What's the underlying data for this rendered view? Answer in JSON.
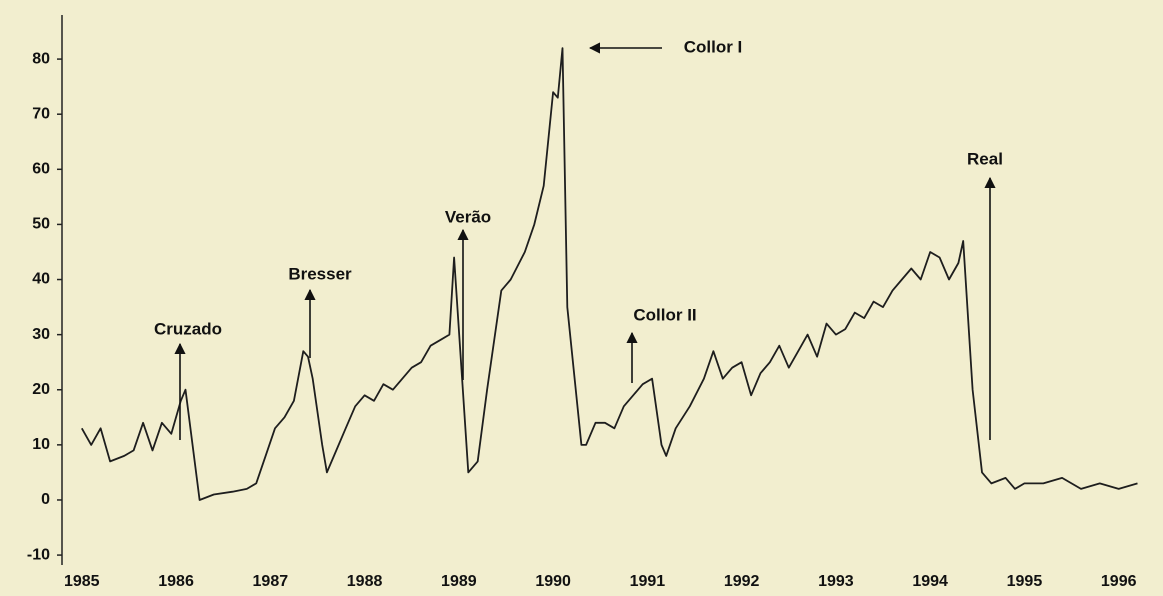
{
  "chart_data": {
    "type": "line",
    "x": [
      1985.0,
      1985.1,
      1985.2,
      1985.3,
      1985.45,
      1985.55,
      1985.65,
      1985.75,
      1985.85,
      1985.95,
      1986.05,
      1986.1,
      1986.25,
      1986.4,
      1986.6,
      1986.75,
      1986.85,
      1986.95,
      1987.05,
      1987.15,
      1987.25,
      1987.35,
      1987.4,
      1987.45,
      1987.55,
      1987.6,
      1987.7,
      1987.8,
      1987.9,
      1988.0,
      1988.1,
      1988.2,
      1988.3,
      1988.4,
      1988.5,
      1988.6,
      1988.7,
      1988.8,
      1988.9,
      1988.95,
      1989.1,
      1989.2,
      1989.3,
      1989.45,
      1989.55,
      1989.7,
      1989.8,
      1989.9,
      1990.0,
      1990.05,
      1990.1,
      1990.15,
      1990.3,
      1990.35,
      1990.45,
      1990.55,
      1990.65,
      1990.75,
      1990.85,
      1990.95,
      1991.05,
      1991.15,
      1991.2,
      1991.3,
      1991.45,
      1991.6,
      1991.7,
      1991.8,
      1991.9,
      1992.0,
      1992.1,
      1992.2,
      1992.3,
      1992.4,
      1992.5,
      1992.6,
      1992.7,
      1992.8,
      1992.9,
      1993.0,
      1993.1,
      1993.2,
      1993.3,
      1993.4,
      1993.5,
      1993.6,
      1993.7,
      1993.8,
      1993.9,
      1994.0,
      1994.1,
      1994.2,
      1994.3,
      1994.35,
      1994.45,
      1994.55,
      1994.65,
      1994.8,
      1994.9,
      1995.0,
      1995.2,
      1995.4,
      1995.6,
      1995.8,
      1996.0,
      1996.2
    ],
    "series": [
      {
        "color": "#1e1e1e",
        "values": [
          13,
          10,
          13,
          7,
          8,
          9,
          14,
          9,
          14,
          12,
          18,
          20,
          0,
          1,
          1.5,
          2,
          3,
          8,
          13,
          15,
          18,
          27,
          26,
          22,
          10,
          5,
          9,
          13,
          17,
          19,
          18,
          21,
          20,
          22,
          24,
          25,
          28,
          29,
          30,
          44,
          5,
          7,
          20,
          38,
          40,
          45,
          50,
          57,
          74,
          73,
          82,
          35,
          10,
          10,
          14,
          14,
          13,
          17,
          19,
          21,
          22,
          10,
          8,
          13,
          17,
          22,
          27,
          22,
          24,
          25,
          19,
          23,
          25,
          28,
          24,
          27,
          30,
          26,
          32,
          30,
          31,
          34,
          33,
          36,
          35,
          38,
          40,
          42,
          40,
          45,
          44,
          40,
          43,
          47,
          20,
          5,
          3,
          4,
          2,
          3,
          3,
          4,
          2,
          3,
          2,
          3
        ]
      }
    ],
    "xlim": [
      1984.79,
      1996.47
    ],
    "ylim": [
      -11.8,
      88
    ],
    "xticks": [
      1985,
      1986,
      1987,
      1988,
      1989,
      1990,
      1991,
      1992,
      1993,
      1994,
      1995,
      1996
    ],
    "yticks": [
      -10,
      0,
      10,
      20,
      30,
      40,
      50,
      60,
      70,
      80
    ],
    "annotations": [
      "Cruzado",
      "Bresser",
      "Verão",
      "Collor I",
      "Collor II",
      "Real"
    ]
  }
}
